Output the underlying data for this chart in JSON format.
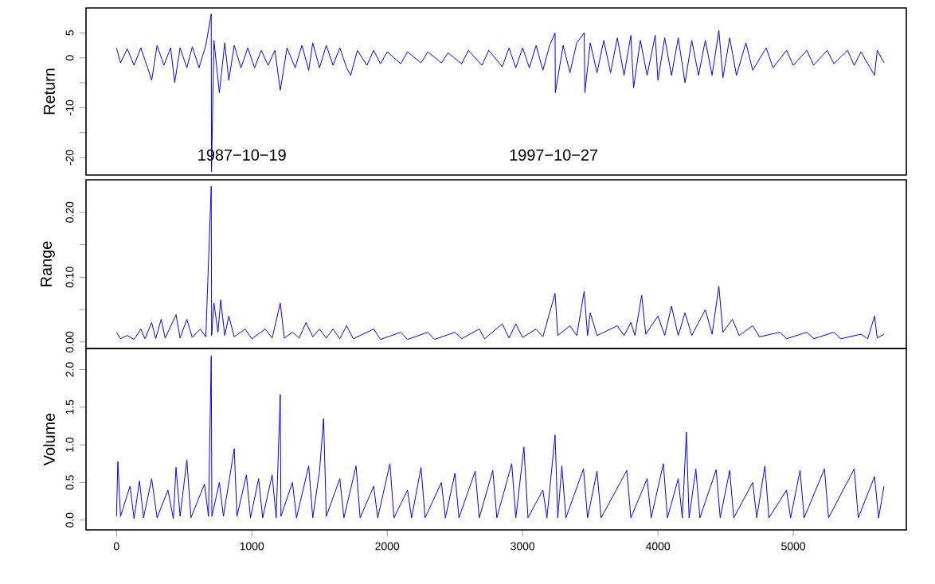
{
  "chart_data": [
    {
      "type": "line",
      "ylabel": "Return",
      "tick_labels": "y",
      "xlim": [
        -225,
        5835
      ],
      "ylim": [
        -23.5,
        10
      ],
      "yticks": [
        -20,
        {
          "value": -15,
          "label": null
        },
        -10,
        {
          "value": -5,
          "label": null
        },
        0,
        5
      ],
      "annotations": [
        "1987−10−19",
        "1997−10−27"
      ],
      "series": [
        {
          "color": "#0000ff",
          "x": [
            0,
            30,
            80,
            130,
            180,
            230,
            260,
            300,
            350,
            400,
            430,
            470,
            520,
            560,
            610,
            660,
            700,
            702,
            720,
            760,
            800,
            830,
            870,
            920,
            970,
            1020,
            1070,
            1120,
            1170,
            1210,
            1260,
            1320,
            1370,
            1420,
            1450,
            1500,
            1550,
            1600,
            1650,
            1700,
            1730,
            1780,
            1850,
            1900,
            1950,
            2000,
            2100,
            2150,
            2250,
            2300,
            2400,
            2450,
            2550,
            2600,
            2700,
            2750,
            2850,
            2900,
            2950,
            3000,
            3050,
            3100,
            3150,
            3200,
            3240,
            3242,
            3300,
            3350,
            3400,
            3455,
            3460,
            3500,
            3550,
            3600,
            3650,
            3700,
            3750,
            3800,
            3820,
            3870,
            3920,
            3980,
            4000,
            4050,
            4100,
            4150,
            4200,
            4250,
            4300,
            4350,
            4400,
            4450,
            4480,
            4530,
            4580,
            4650,
            4700,
            4800,
            4850,
            4950,
            5000,
            5100,
            5150,
            5250,
            5300,
            5400,
            5450,
            5500,
            5550,
            5600,
            5620,
            5670
          ],
          "values": [
            2,
            -1,
            1.8,
            -1.5,
            2,
            -2,
            -4.5,
            2.5,
            -1.5,
            2,
            -5,
            2,
            -2,
            2.2,
            -2,
            2.5,
            8.8,
            -22.8,
            3.5,
            -7,
            3,
            -4.5,
            2.5,
            -2,
            2,
            -2,
            1.5,
            -1.5,
            1.5,
            -6.5,
            2,
            -2,
            2.5,
            -2.5,
            3,
            -2,
            2.5,
            -1.5,
            2,
            -2,
            -3.5,
            1.5,
            -1.5,
            1.5,
            -1.2,
            1.2,
            -1.2,
            1.2,
            -1,
            1.2,
            -1,
            1,
            -1.2,
            1.5,
            -1.5,
            1.5,
            -1.8,
            2,
            -2,
            2,
            -2,
            2.5,
            -2.5,
            2.5,
            5,
            -7,
            2.5,
            -3,
            3,
            5,
            -7,
            3,
            -3,
            3.5,
            -3,
            4,
            -3.5,
            4.5,
            -6,
            3.5,
            -3.5,
            4.5,
            -4.5,
            4,
            -3.5,
            4,
            -5,
            3.5,
            -3.5,
            3.5,
            -3.5,
            5.5,
            -4,
            4,
            -3.5,
            3,
            -2.5,
            2,
            -2,
            1.5,
            -1.5,
            1.5,
            -1.5,
            1.5,
            -1.2,
            1.5,
            -1.5,
            1.2,
            -1.2,
            -3.5,
            1.5,
            -1
          ]
        }
      ]
    },
    {
      "type": "line",
      "ylabel": "Range",
      "tick_labels": "y",
      "xlim": [
        -225,
        5835
      ],
      "ylim": [
        -0.01,
        0.25
      ],
      "yticks": [
        {
          "value": 0,
          "label": "0.00"
        },
        {
          "value": 0.05,
          "label": null
        },
        {
          "value": 0.1,
          "label": "0.10"
        },
        {
          "value": 0.15,
          "label": null
        },
        {
          "value": 0.2,
          "label": "0.20"
        }
      ],
      "series": [
        {
          "color": "#0000ff",
          "x": [
            0,
            30,
            80,
            130,
            180,
            210,
            260,
            290,
            330,
            360,
            440,
            470,
            520,
            560,
            620,
            660,
            700,
            703,
            720,
            750,
            770,
            800,
            830,
            870,
            950,
            1000,
            1100,
            1150,
            1210,
            1240,
            1300,
            1350,
            1400,
            1450,
            1500,
            1550,
            1600,
            1650,
            1700,
            1750,
            1900,
            1950,
            2100,
            2150,
            2300,
            2350,
            2500,
            2550,
            2680,
            2720,
            2850,
            2900,
            2950,
            3000,
            3100,
            3150,
            3240,
            3260,
            3350,
            3400,
            3455,
            3480,
            3500,
            3550,
            3700,
            3750,
            3800,
            3830,
            3880,
            3910,
            4000,
            4050,
            4100,
            4150,
            4200,
            4250,
            4350,
            4400,
            4450,
            4480,
            4550,
            4600,
            4700,
            4750,
            4900,
            4950,
            5100,
            5150,
            5300,
            5350,
            5500,
            5550,
            5600,
            5620,
            5670
          ],
          "values": [
            0.015,
            0.005,
            0.01,
            0.004,
            0.02,
            0.005,
            0.03,
            0.005,
            0.035,
            0.006,
            0.042,
            0.006,
            0.035,
            0.007,
            0.02,
            0.008,
            0.24,
            0.01,
            0.06,
            0.015,
            0.065,
            0.01,
            0.04,
            0.008,
            0.02,
            0.005,
            0.02,
            0.006,
            0.06,
            0.006,
            0.015,
            0.006,
            0.03,
            0.008,
            0.02,
            0.006,
            0.02,
            0.005,
            0.025,
            0.005,
            0.02,
            0.004,
            0.015,
            0.004,
            0.015,
            0.004,
            0.015,
            0.005,
            0.02,
            0.005,
            0.028,
            0.006,
            0.028,
            0.007,
            0.02,
            0.008,
            0.075,
            0.01,
            0.025,
            0.01,
            0.078,
            0.01,
            0.045,
            0.01,
            0.025,
            0.01,
            0.03,
            0.01,
            0.072,
            0.012,
            0.04,
            0.01,
            0.055,
            0.01,
            0.045,
            0.01,
            0.05,
            0.012,
            0.086,
            0.015,
            0.035,
            0.01,
            0.025,
            0.008,
            0.015,
            0.005,
            0.015,
            0.005,
            0.015,
            0.005,
            0.012,
            0.005,
            0.04,
            0.006,
            0.012
          ]
        }
      ]
    },
    {
      "type": "line",
      "ylabel": "Volume",
      "xlim": [
        -225,
        5835
      ],
      "ylim": [
        -0.13,
        2.28
      ],
      "xticks": [
        0,
        1000,
        2000,
        3000,
        4000,
        5000
      ],
      "yticks": [
        {
          "value": 0,
          "label": "0.0"
        },
        {
          "value": 0.5,
          "label": "0.5"
        },
        {
          "value": 1,
          "label": "1.0"
        },
        {
          "value": 1.5,
          "label": "1.5"
        },
        {
          "value": 2,
          "label": "2.0"
        }
      ],
      "series": [
        {
          "color": "#0000ff",
          "x": [
            0,
            10,
            30,
            100,
            130,
            170,
            200,
            260,
            300,
            380,
            420,
            440,
            470,
            520,
            550,
            650,
            680,
            700,
            705,
            760,
            790,
            870,
            890,
            960,
            990,
            1050,
            1080,
            1150,
            1180,
            1210,
            1215,
            1300,
            1330,
            1420,
            1450,
            1500,
            1530,
            1550,
            1650,
            1680,
            1770,
            1800,
            1900,
            1930,
            2020,
            2050,
            2150,
            2180,
            2250,
            2280,
            2400,
            2430,
            2500,
            2530,
            2650,
            2680,
            2780,
            2810,
            2920,
            2950,
            3010,
            3040,
            3150,
            3180,
            3240,
            3260,
            3290,
            3320,
            3450,
            3480,
            3550,
            3580,
            3770,
            3800,
            3920,
            3950,
            4040,
            4070,
            4150,
            4180,
            4210,
            4230,
            4280,
            4310,
            4430,
            4460,
            4530,
            4560,
            4700,
            4730,
            4790,
            4820,
            4950,
            4980,
            5050,
            5080,
            5230,
            5260,
            5450,
            5480,
            5600,
            5630,
            5670
          ],
          "values": [
            0.05,
            0.78,
            0.05,
            0.45,
            0.02,
            0.52,
            0.03,
            0.55,
            0.03,
            0.4,
            0.02,
            0.7,
            0.05,
            0.8,
            0.03,
            0.48,
            0.05,
            2.18,
            0.05,
            0.5,
            0.05,
            0.95,
            0.05,
            0.6,
            0.03,
            0.55,
            0.03,
            0.6,
            0.03,
            1.67,
            0.05,
            0.5,
            0.03,
            0.72,
            0.03,
            0.65,
            1.35,
            0.05,
            0.55,
            0.03,
            0.72,
            0.03,
            0.45,
            0.03,
            0.75,
            0.03,
            0.4,
            0.03,
            0.7,
            0.03,
            0.5,
            0.03,
            0.62,
            0.03,
            0.65,
            0.03,
            0.66,
            0.03,
            0.75,
            0.03,
            0.97,
            0.03,
            0.4,
            0.03,
            1.13,
            0.03,
            0.72,
            0.03,
            0.68,
            0.03,
            0.65,
            0.03,
            0.66,
            0.03,
            0.55,
            0.03,
            0.75,
            0.03,
            0.55,
            0.03,
            1.17,
            0.03,
            0.68,
            0.03,
            0.67,
            0.03,
            0.66,
            0.03,
            0.5,
            0.03,
            0.72,
            0.03,
            0.4,
            0.03,
            0.66,
            0.03,
            0.68,
            0.03,
            0.68,
            0.03,
            0.58,
            0.03,
            0.45
          ]
        }
      ]
    }
  ]
}
